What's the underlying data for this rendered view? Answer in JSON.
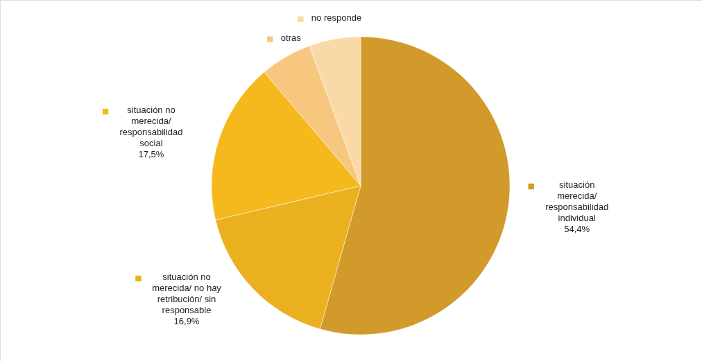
{
  "chart_data": {
    "type": "pie",
    "categories": [
      "situación merecida/ responsabilidad individual",
      "situación no merecida/ no hay retribución/ sin responsable",
      "situación no merecida/ responsabilidad social",
      "otras",
      "no responde"
    ],
    "values": [
      54.4,
      16.9,
      17.5,
      5.6,
      5.6
    ],
    "value_labels": [
      "54,4%",
      "16,9%",
      "17,5%",
      null,
      null
    ],
    "colors": [
      "#d19a2a",
      "#eab020",
      "#f5b91e",
      "#f8c77f",
      "#fad9a8"
    ],
    "legend": "top left"
  }
}
